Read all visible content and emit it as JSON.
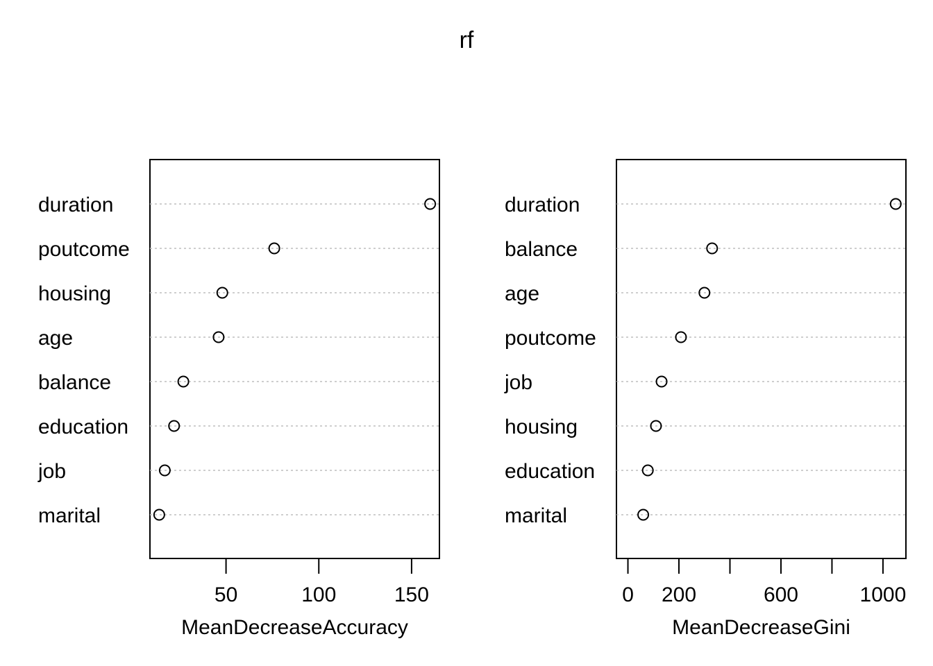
{
  "title": "rf",
  "chart_data": [
    {
      "type": "dotchart",
      "xlabel": "MeanDecreaseAccuracy",
      "xlim": [
        9,
        165
      ],
      "xticks": [
        50,
        100,
        150
      ],
      "xtick_labels": [
        "50",
        "100",
        "150"
      ],
      "grid": "dotted horizontal lines",
      "points": [
        {
          "label": "duration",
          "value": 160
        },
        {
          "label": "poutcome",
          "value": 76
        },
        {
          "label": "housing",
          "value": 48
        },
        {
          "label": "age",
          "value": 46
        },
        {
          "label": "balance",
          "value": 27
        },
        {
          "label": "education",
          "value": 22
        },
        {
          "label": "job",
          "value": 17
        },
        {
          "label": "marital",
          "value": 14
        }
      ]
    },
    {
      "type": "dotchart",
      "xlabel": "MeanDecreaseGini",
      "xlim": [
        -45,
        1090
      ],
      "xticks": [
        0,
        200,
        400,
        600,
        800,
        1000
      ],
      "xtick_labels": [
        "0",
        "200",
        "",
        "600",
        "",
        "1000"
      ],
      "grid": "dotted horizontal lines",
      "points": [
        {
          "label": "duration",
          "value": 1050
        },
        {
          "label": "balance",
          "value": 330
        },
        {
          "label": "age",
          "value": 300
        },
        {
          "label": "poutcome",
          "value": 208
        },
        {
          "label": "job",
          "value": 132
        },
        {
          "label": "housing",
          "value": 110
        },
        {
          "label": "education",
          "value": 78
        },
        {
          "label": "marital",
          "value": 60
        }
      ]
    }
  ]
}
